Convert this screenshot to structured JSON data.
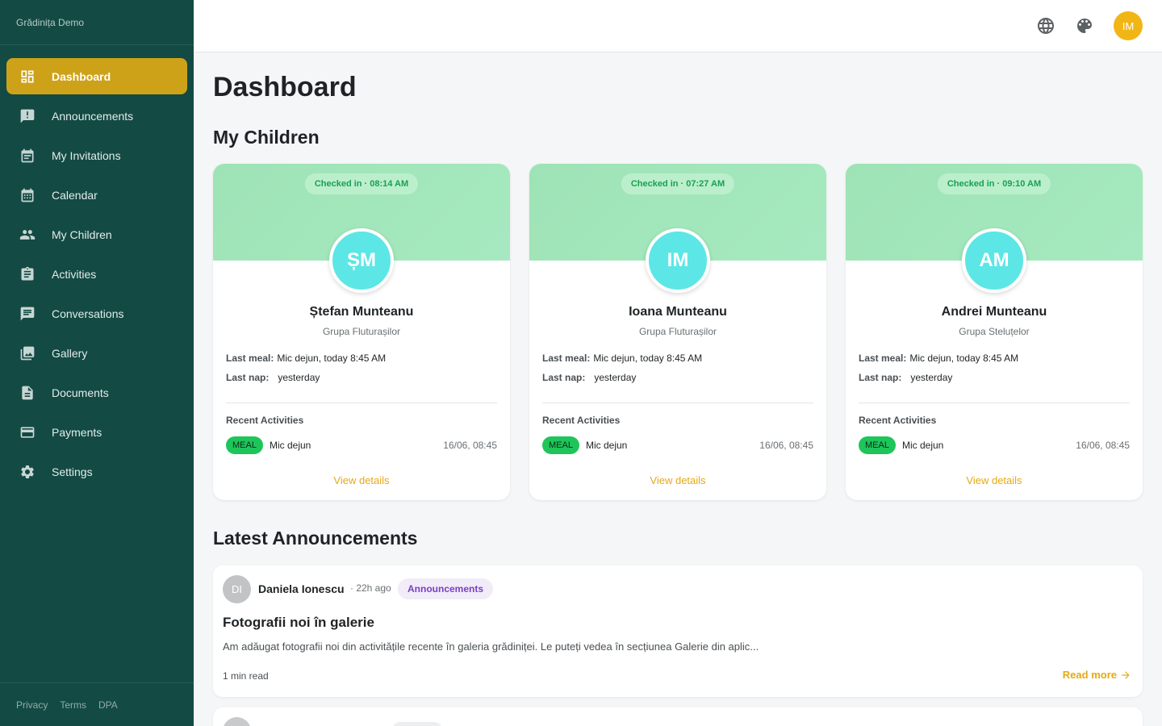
{
  "app": {
    "brand": "Grădinița Demo"
  },
  "sidebar": {
    "items": [
      {
        "label": "Dashboard",
        "icon": "dashboard-icon",
        "active": true
      },
      {
        "label": "Announcements",
        "icon": "announcement-icon"
      },
      {
        "label": "My Invitations",
        "icon": "event-icon"
      },
      {
        "label": "Calendar",
        "icon": "calendar-icon"
      },
      {
        "label": "My Children",
        "icon": "people-icon"
      },
      {
        "label": "Activities",
        "icon": "clipboard-icon"
      },
      {
        "label": "Conversations",
        "icon": "chat-icon"
      },
      {
        "label": "Gallery",
        "icon": "gallery-icon"
      },
      {
        "label": "Documents",
        "icon": "document-icon"
      },
      {
        "label": "Payments",
        "icon": "credit-card-icon"
      },
      {
        "label": "Settings",
        "icon": "gear-icon"
      }
    ],
    "footer": {
      "privacy": "Privacy",
      "terms": "Terms",
      "dpa": "DPA"
    }
  },
  "topbar": {
    "user_initials": "IM",
    "accent": "#f1b616"
  },
  "main": {
    "title": "Dashboard",
    "children_title": "My Children",
    "children": [
      {
        "checkin": "Checked in · 08:14 AM",
        "initials": "ȘM",
        "name": "Ștefan Munteanu",
        "group": "Grupa Fluturașilor",
        "last_meal_label": "Last meal:",
        "last_meal": "Mic dejun, today 8:45 AM",
        "last_nap_label": "Last nap:",
        "last_nap": "yesterday",
        "recent_title": "Recent Activities",
        "activity": {
          "badge": "MEAL",
          "name": "Mic dejun",
          "time": "16/06, 08:45"
        },
        "view": "View details"
      },
      {
        "checkin": "Checked in · 07:27 AM",
        "initials": "IM",
        "name": "Ioana Munteanu",
        "group": "Grupa Fluturașilor",
        "last_meal_label": "Last meal:",
        "last_meal": "Mic dejun, today 8:45 AM",
        "last_nap_label": "Last nap:",
        "last_nap": "yesterday",
        "recent_title": "Recent Activities",
        "activity": {
          "badge": "MEAL",
          "name": "Mic dejun",
          "time": "16/06, 08:45"
        },
        "view": "View details"
      },
      {
        "checkin": "Checked in · 09:10 AM",
        "initials": "AM",
        "name": "Andrei Munteanu",
        "group": "Grupa Steluțelor",
        "last_meal_label": "Last meal:",
        "last_meal": "Mic dejun, today 8:45 AM",
        "last_nap_label": "Last nap:",
        "last_nap": "yesterday",
        "recent_title": "Recent Activities",
        "activity": {
          "badge": "MEAL",
          "name": "Mic dejun",
          "time": "16/06, 08:45"
        },
        "view": "View details"
      }
    ],
    "announcements_title": "Latest Announcements",
    "announcements": [
      {
        "initials": "DI",
        "author": "Daniela Ionescu",
        "meta": "· 22h ago",
        "tag": "Announcements",
        "title": "Fotografii noi în galerie",
        "body": "Am adăugat fotografii noi din activitățile recente în galeria grădiniței. Le puteți vedea în secțiunea Galerie din aplic...",
        "read_time": "1 min read",
        "read_more": "Read more"
      }
    ]
  }
}
